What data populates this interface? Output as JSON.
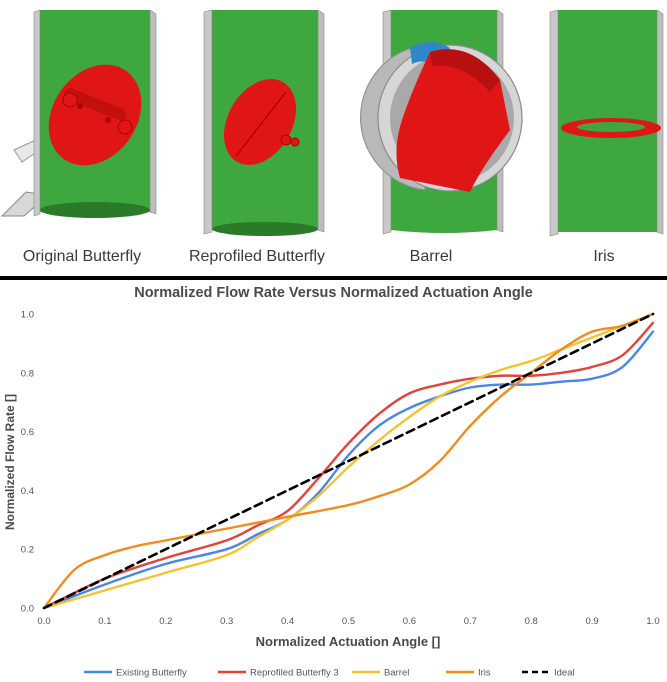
{
  "valve_labels": [
    "Original Butterfly",
    "Reprofiled Butterfly",
    "Barrel",
    "Iris"
  ],
  "colors": {
    "pipe_green": "#3ea83e",
    "pipe_dark": "#2a7a2a",
    "valve_red": "#e01616",
    "pipe_gray": "#c8c8c8",
    "barrel_blue": "#2f86c8"
  },
  "chart_data": {
    "type": "line",
    "title": "Normalized Flow Rate Versus Normalized Actuation Angle",
    "xlabel": "Normalized Actuation Angle []",
    "ylabel": "Normalized Flow Rate []",
    "xlim": [
      0,
      1
    ],
    "ylim": [
      0,
      1
    ],
    "xticks": [
      "0.0",
      "0.1",
      "0.2",
      "0.3",
      "0.4",
      "0.5",
      "0.6",
      "0.7",
      "0.8",
      "0.9",
      "1.0"
    ],
    "yticks": [
      "0.0",
      "0.2",
      "0.4",
      "0.6",
      "0.8",
      "1.0"
    ],
    "grid": false,
    "legend_position": "bottom",
    "series": [
      {
        "name": "Existing Butterfly",
        "color": "#4a86e8",
        "dash": false,
        "x": [
          0,
          0.1,
          0.2,
          0.3,
          0.35,
          0.4,
          0.45,
          0.5,
          0.55,
          0.6,
          0.65,
          0.7,
          0.75,
          0.8,
          0.85,
          0.9,
          0.95,
          1.0
        ],
        "y": [
          0,
          0.08,
          0.15,
          0.2,
          0.25,
          0.3,
          0.39,
          0.52,
          0.62,
          0.68,
          0.72,
          0.75,
          0.76,
          0.76,
          0.77,
          0.78,
          0.82,
          0.94
        ]
      },
      {
        "name": "Reprofiled Butterfly 3",
        "color": "#e0443a",
        "dash": false,
        "x": [
          0,
          0.1,
          0.2,
          0.3,
          0.35,
          0.4,
          0.45,
          0.5,
          0.55,
          0.6,
          0.65,
          0.7,
          0.75,
          0.8,
          0.85,
          0.9,
          0.95,
          1.0
        ],
        "y": [
          0,
          0.1,
          0.17,
          0.23,
          0.28,
          0.33,
          0.44,
          0.56,
          0.66,
          0.73,
          0.76,
          0.78,
          0.79,
          0.79,
          0.8,
          0.82,
          0.86,
          0.97
        ]
      },
      {
        "name": "Barrel",
        "color": "#f4c430",
        "dash": false,
        "x": [
          0,
          0.1,
          0.2,
          0.3,
          0.35,
          0.4,
          0.45,
          0.5,
          0.55,
          0.6,
          0.65,
          0.7,
          0.75,
          0.8,
          0.85,
          0.9,
          0.95,
          1.0
        ],
        "y": [
          0,
          0.06,
          0.12,
          0.18,
          0.24,
          0.3,
          0.38,
          0.48,
          0.57,
          0.65,
          0.72,
          0.77,
          0.81,
          0.84,
          0.88,
          0.92,
          0.96,
          1.0
        ]
      },
      {
        "name": "Iris",
        "color": "#f08c1e",
        "dash": false,
        "x": [
          0,
          0.05,
          0.1,
          0.15,
          0.2,
          0.3,
          0.4,
          0.5,
          0.55,
          0.6,
          0.65,
          0.7,
          0.75,
          0.8,
          0.85,
          0.9,
          0.95,
          1.0
        ],
        "y": [
          0,
          0.13,
          0.18,
          0.21,
          0.23,
          0.27,
          0.31,
          0.35,
          0.38,
          0.42,
          0.5,
          0.62,
          0.72,
          0.8,
          0.88,
          0.94,
          0.96,
          1.0
        ]
      },
      {
        "name": "Ideal",
        "color": "#000000",
        "dash": true,
        "x": [
          0,
          1
        ],
        "y": [
          0,
          1
        ]
      }
    ]
  }
}
